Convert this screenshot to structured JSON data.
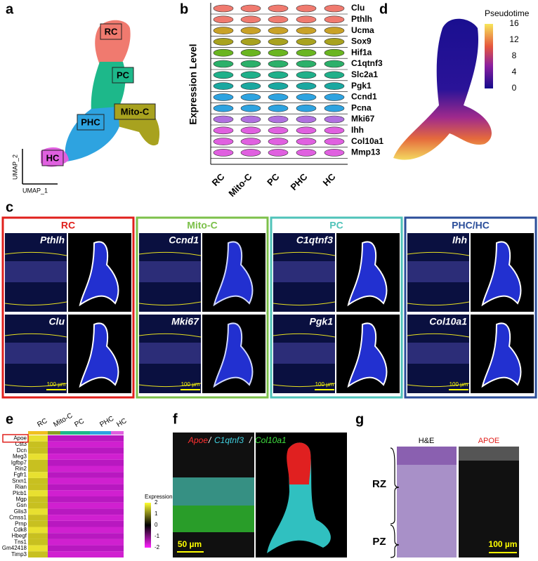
{
  "panels": {
    "a": {
      "label": "a",
      "clusters": [
        "RC",
        "PC",
        "Mito-C",
        "PHC",
        "HC"
      ],
      "x_axis": "UMAP_1",
      "y_axis": "UMAP_2"
    },
    "b": {
      "label": "b",
      "y_axis": "Expression Level",
      "genes": [
        "Clu",
        "Pthlh",
        "Ucma",
        "Sox9",
        "Hif1a",
        "C1qtnf3",
        "Slc2a1",
        "Pgk1",
        "Ccnd1",
        "Pcna",
        "Mki67",
        "Ihh",
        "Col10a1",
        "Mmp13"
      ],
      "groups": [
        "RC",
        "Mito-C",
        "PC",
        "PHC",
        "HC"
      ]
    },
    "c": {
      "label": "c",
      "blocks": [
        {
          "title": "RC",
          "genes": [
            "Pthlh",
            "Clu"
          ]
        },
        {
          "title": "Mito-C",
          "genes": [
            "Ccnd1",
            "Mki67"
          ]
        },
        {
          "title": "PC",
          "genes": [
            "C1qtnf3",
            "Pgk1"
          ]
        },
        {
          "title": "PHC/HC",
          "genes": [
            "Ihh",
            "Col10a1"
          ]
        }
      ],
      "scale_bar": "100 µm"
    },
    "d": {
      "label": "d",
      "legend_title": "Pseudotime",
      "ticks": [
        16,
        12,
        8,
        4,
        0
      ]
    },
    "e": {
      "label": "e",
      "groups": [
        "RC",
        "Mito-C",
        "PC",
        "PHC",
        "HC"
      ],
      "genes": [
        "Apoe",
        "Cst3",
        "Dcn",
        "Meg3",
        "Igfbp7",
        "Rin2",
        "Fgfr1",
        "Srxn1",
        "Rian",
        "Plcb1",
        "Mgp",
        "Gsn",
        "Glis3",
        "Cmss1",
        "Prnp",
        "Cdk8",
        "Hbegf",
        "Tns1",
        "Gm42418",
        "Timp3"
      ],
      "legend_title": "Expression",
      "ticks": [
        2,
        1,
        0,
        -1,
        -2
      ]
    },
    "f": {
      "label": "f",
      "title_parts": [
        "Apoe",
        "/",
        "C1qtnf3",
        "/",
        "Col10a1"
      ],
      "scale_bar": "50 µm"
    },
    "g": {
      "label": "g",
      "columns": [
        "H&E",
        "APOE"
      ],
      "zones": [
        "RZ",
        "PZ"
      ],
      "scale_bar": "100 µm"
    }
  }
}
